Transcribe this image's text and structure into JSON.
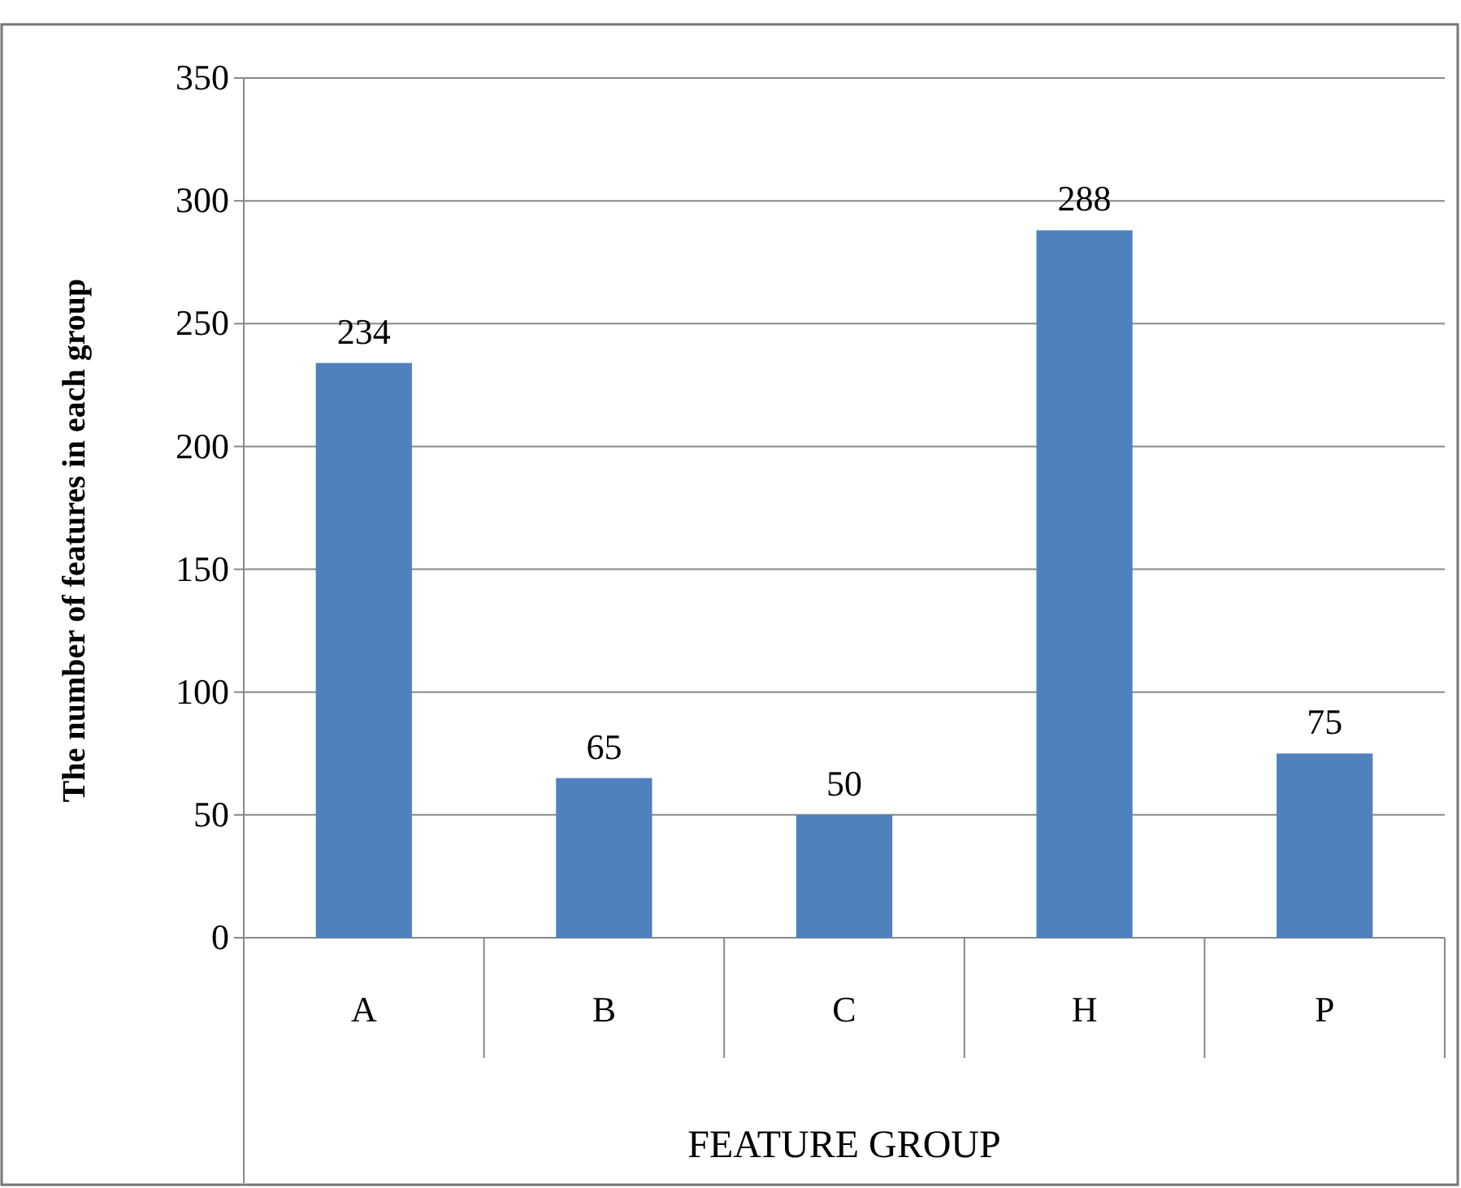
{
  "chart_data": {
    "type": "bar",
    "xlabel": "FEATURE GROUP",
    "ylabel": "The number of features in each group",
    "categories": [
      "A",
      "B",
      "C",
      "H",
      "P"
    ],
    "values": [
      234,
      65,
      50,
      288,
      75
    ],
    "color": "#4f81bd",
    "ylim": [
      0,
      350
    ],
    "yticks": [
      0,
      50,
      100,
      150,
      200,
      250,
      300,
      350
    ],
    "grid": "y",
    "data_labels": true
  }
}
